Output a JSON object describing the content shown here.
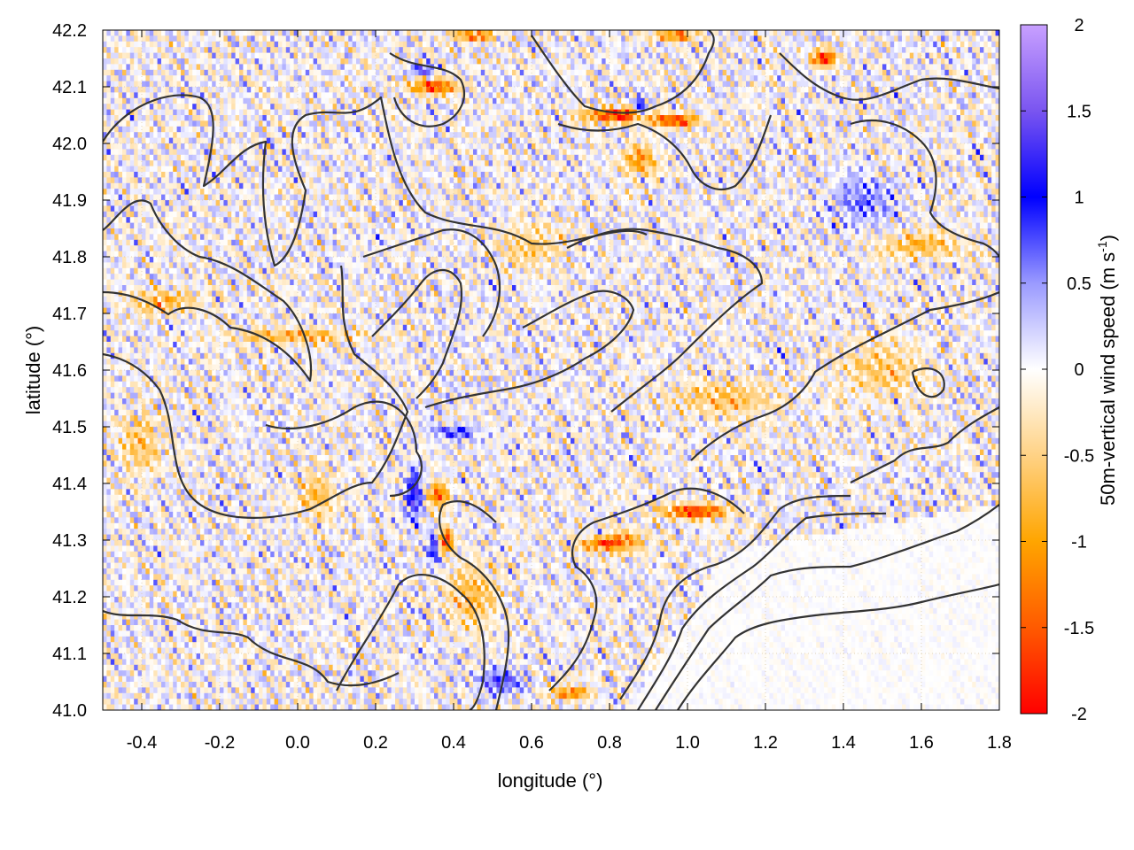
{
  "chart_data": {
    "type": "heatmap",
    "title": "",
    "xlabel": "longitude (°)",
    "ylabel": "latitude (°)",
    "colorbar_label": "50m-vertical wind speed",
    "colorbar_unit_prefix": "(m s",
    "colorbar_unit_exp": "-1",
    "colorbar_unit_suffix": ")",
    "xlim": [
      -0.5,
      1.8
    ],
    "ylim": [
      41.0,
      42.2
    ],
    "clim": [
      -2,
      2
    ],
    "x_ticks": [
      {
        "v": -0.4,
        "label": "-0.4"
      },
      {
        "v": -0.2,
        "label": "-0.2"
      },
      {
        "v": 0.0,
        "label": "0.0"
      },
      {
        "v": 0.2,
        "label": "0.2"
      },
      {
        "v": 0.4,
        "label": "0.4"
      },
      {
        "v": 0.6,
        "label": "0.6"
      },
      {
        "v": 0.8,
        "label": "0.8"
      },
      {
        "v": 1.0,
        "label": "1.0"
      },
      {
        "v": 1.2,
        "label": "1.2"
      },
      {
        "v": 1.4,
        "label": "1.4"
      },
      {
        "v": 1.6,
        "label": "1.6"
      },
      {
        "v": 1.8,
        "label": "1.8"
      }
    ],
    "y_ticks": [
      {
        "v": 41.0,
        "label": "41.0"
      },
      {
        "v": 41.1,
        "label": "41.1"
      },
      {
        "v": 41.2,
        "label": "41.2"
      },
      {
        "v": 41.3,
        "label": "41.3"
      },
      {
        "v": 41.4,
        "label": "41.4"
      },
      {
        "v": 41.5,
        "label": "41.5"
      },
      {
        "v": 41.6,
        "label": "41.6"
      },
      {
        "v": 41.7,
        "label": "41.7"
      },
      {
        "v": 41.8,
        "label": "41.8"
      },
      {
        "v": 41.9,
        "label": "41.9"
      },
      {
        "v": 42.0,
        "label": "42.0"
      },
      {
        "v": 42.1,
        "label": "42.1"
      },
      {
        "v": 42.2,
        "label": "42.2"
      }
    ],
    "colorbar_ticks": [
      {
        "v": 2,
        "label": "2"
      },
      {
        "v": 1.5,
        "label": "1.5"
      },
      {
        "v": 1,
        "label": "1"
      },
      {
        "v": 0.5,
        "label": "0.5"
      },
      {
        "v": 0,
        "label": "0"
      },
      {
        "v": -0.5,
        "label": "-0.5"
      },
      {
        "v": -1,
        "label": "-1"
      },
      {
        "v": -1.5,
        "label": "-1.5"
      },
      {
        "v": -2,
        "label": "-2"
      }
    ],
    "colormap": [
      {
        "v": -2,
        "color": "#ff0000"
      },
      {
        "v": -1.5,
        "color": "#ff5a00"
      },
      {
        "v": -1,
        "color": "#ffa500"
      },
      {
        "v": -0.5,
        "color": "#ffd285"
      },
      {
        "v": 0,
        "color": "#ffffff"
      },
      {
        "v": 0.5,
        "color": "#9a9aff"
      },
      {
        "v": 1,
        "color": "#0000ff"
      },
      {
        "v": 1.5,
        "color": "#7a55f0"
      },
      {
        "v": 2,
        "color": "#c8a0ff"
      }
    ],
    "grid": true,
    "gridline_color": "#d8c8a8",
    "contour_color": "#333333",
    "anomaly_blobs": [
      {
        "lon": 0.82,
        "lat": 42.05,
        "value": -2.0,
        "rx": 0.08,
        "ry": 0.012
      },
      {
        "lon": 0.97,
        "lat": 42.04,
        "value": -1.9,
        "rx": 0.06,
        "ry": 0.01
      },
      {
        "lon": 0.88,
        "lat": 42.06,
        "value": 1.4,
        "rx": 0.015,
        "ry": 0.02
      },
      {
        "lon": 0.35,
        "lat": 42.1,
        "value": -1.8,
        "rx": 0.06,
        "ry": 0.012
      },
      {
        "lon": 0.32,
        "lat": 42.13,
        "value": 1.1,
        "rx": 0.03,
        "ry": 0.01
      },
      {
        "lon": 0.45,
        "lat": 42.19,
        "value": -1.7,
        "rx": 0.05,
        "ry": 0.008
      },
      {
        "lon": 1.35,
        "lat": 42.15,
        "value": -1.9,
        "rx": 0.03,
        "ry": 0.015
      },
      {
        "lon": 0.97,
        "lat": 42.19,
        "value": -1.6,
        "rx": 0.05,
        "ry": 0.008
      },
      {
        "lon": 0.88,
        "lat": 41.97,
        "value": -1.1,
        "rx": 0.04,
        "ry": 0.025
      },
      {
        "lon": 0.8,
        "lat": 41.3,
        "value": -2.0,
        "rx": 0.07,
        "ry": 0.018
      },
      {
        "lon": 1.02,
        "lat": 41.35,
        "value": -1.9,
        "rx": 0.08,
        "ry": 0.012
      },
      {
        "lon": 0.78,
        "lat": 41.31,
        "value": 1.3,
        "rx": 0.05,
        "ry": 0.01
      },
      {
        "lon": 0.36,
        "lat": 41.38,
        "value": -1.6,
        "rx": 0.025,
        "ry": 0.02
      },
      {
        "lon": 0.38,
        "lat": 41.3,
        "value": -1.7,
        "rx": 0.02,
        "ry": 0.02
      },
      {
        "lon": 0.3,
        "lat": 41.38,
        "value": 1.3,
        "rx": 0.02,
        "ry": 0.04
      },
      {
        "lon": 0.35,
        "lat": 41.29,
        "value": 1.2,
        "rx": 0.015,
        "ry": 0.03
      },
      {
        "lon": 0.0,
        "lat": 41.66,
        "value": -0.9,
        "rx": 0.16,
        "ry": 0.012
      },
      {
        "lon": -0.35,
        "lat": 41.72,
        "value": -0.8,
        "rx": 0.08,
        "ry": 0.02
      },
      {
        "lon": 0.4,
        "lat": 41.49,
        "value": 1.0,
        "rx": 0.06,
        "ry": 0.01
      },
      {
        "lon": 1.6,
        "lat": 41.82,
        "value": -0.8,
        "rx": 0.1,
        "ry": 0.02
      },
      {
        "lon": 1.1,
        "lat": 41.55,
        "value": -0.7,
        "rx": 0.12,
        "ry": 0.03
      },
      {
        "lon": 0.7,
        "lat": 41.03,
        "value": -1.4,
        "rx": 0.05,
        "ry": 0.01
      },
      {
        "lon": 0.45,
        "lat": 41.2,
        "value": -0.8,
        "rx": 0.06,
        "ry": 0.05
      },
      {
        "lon": 0.52,
        "lat": 41.05,
        "value": 0.9,
        "rx": 0.06,
        "ry": 0.02
      },
      {
        "lon": 0.05,
        "lat": 41.38,
        "value": -0.7,
        "rx": 0.05,
        "ry": 0.04
      },
      {
        "lon": -0.4,
        "lat": 41.47,
        "value": -0.7,
        "rx": 0.05,
        "ry": 0.05
      },
      {
        "lon": 1.5,
        "lat": 41.6,
        "value": -0.6,
        "rx": 0.1,
        "ry": 0.05
      },
      {
        "lon": 1.45,
        "lat": 41.9,
        "value": 0.6,
        "rx": 0.08,
        "ry": 0.04
      },
      {
        "lon": 0.6,
        "lat": 41.82,
        "value": -0.5,
        "rx": 0.08,
        "ry": 0.04
      }
    ],
    "calm_region": {
      "lon_min": 0.85,
      "lon_max": 1.8,
      "lat_min": 41.0,
      "lat_max": 41.25
    }
  }
}
